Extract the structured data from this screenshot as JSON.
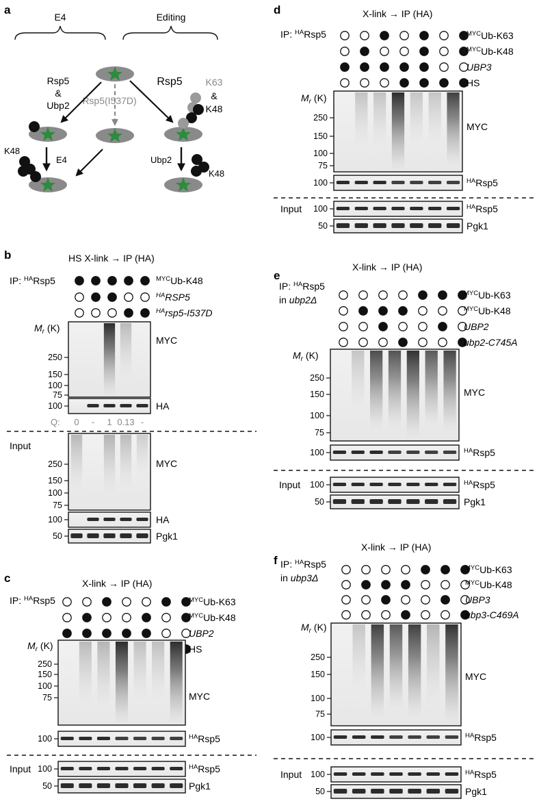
{
  "panel_a": {
    "letter": "a",
    "left_group": "E4",
    "right_group": "Editing",
    "rsp5_ubp2": [
      "Rsp5",
      "&",
      "Ubp2"
    ],
    "mutant": "Rsp5(I537D)",
    "rsp5": "Rsp5",
    "k63_and_k48": [
      "K63",
      "&",
      "K48"
    ],
    "k48_left": "K48",
    "e4": "E4",
    "ubp2": "Ubp2",
    "k48_right": "K48"
  },
  "panel_b": {
    "letter": "b",
    "title": "HS X-link → IP (HA)",
    "ip_label": "IP:",
    "ip_sup": "HA",
    "ip_protein": "Rsp5",
    "rows": [
      {
        "sup": "MYC",
        "label": "Ub-K48",
        "italic": false,
        "dots": [
          1,
          1,
          1,
          1,
          1
        ]
      },
      {
        "sup": "HA",
        "label": "RSP5",
        "italic": true,
        "dots": [
          0,
          1,
          1,
          0,
          0
        ]
      },
      {
        "sup": "HA",
        "label": "rsp5-I537D",
        "italic": true,
        "dots": [
          0,
          0,
          0,
          1,
          1
        ]
      }
    ],
    "mr": "M",
    "mr_sub": "r",
    "mr_unit": " (K)",
    "ip_ticks": [
      "250",
      "150",
      "100",
      "75"
    ],
    "ha_tick": "100",
    "myc": "MYC",
    "ha": "HA",
    "q_label": "Q:",
    "q_values": [
      "0",
      "-",
      "1",
      "0.13",
      "-"
    ],
    "input_label": "Input",
    "input_ticks": [
      "250",
      "150",
      "100",
      "75"
    ],
    "input_ha_tick": "100",
    "pgk_tick": "50",
    "pgk1": "Pgk1"
  },
  "panel_c": {
    "letter": "c",
    "title": "X-link → IP (HA)",
    "ip_label": "IP:",
    "ip_sup": "HA",
    "ip_protein": "Rsp5",
    "rows": [
      {
        "sup": "",
        "label": "Ub-K63",
        "sup2": "MYC",
        "italic": false,
        "dots": [
          0,
          0,
          1,
          0,
          0,
          1,
          1
        ]
      },
      {
        "sup2": "MYC",
        "label": "Ub-K48",
        "italic": false,
        "dots": [
          0,
          1,
          0,
          0,
          1,
          0,
          1
        ]
      },
      {
        "sup2": "",
        "label": "UBP2",
        "italic": true,
        "dots": [
          1,
          1,
          1,
          1,
          1,
          0,
          0
        ]
      },
      {
        "sup2": "",
        "label": "HS",
        "italic": false,
        "dots": [
          0,
          0,
          0,
          1,
          1,
          1,
          1
        ]
      }
    ],
    "mr": "M",
    "mr_sub": "r",
    "mr_unit": " (K)",
    "ticks": [
      "250",
      "150",
      "100",
      "75"
    ],
    "myc": "MYC",
    "rsp5_tick": "100",
    "rsp5_sup": "HA",
    "rsp5": "Rsp5",
    "input_label": "Input",
    "input_rsp5_tick": "100",
    "pgk_tick": "50",
    "pgk1": "Pgk1"
  },
  "panel_d": {
    "letter": "d",
    "title": "X-link → IP (HA)",
    "ip_label": "IP:",
    "ip_sup": "HA",
    "ip_protein": "Rsp5",
    "rows": [
      {
        "sup2": "MYC",
        "label": "Ub-K63",
        "italic": false,
        "dots": [
          0,
          0,
          1,
          0,
          1,
          0,
          1
        ]
      },
      {
        "sup2": "MYC",
        "label": "Ub-K48",
        "italic": false,
        "dots": [
          0,
          1,
          0,
          0,
          1,
          0,
          1
        ]
      },
      {
        "sup2": "",
        "label": "UBP3",
        "italic": true,
        "dots": [
          1,
          1,
          1,
          1,
          1,
          0,
          0
        ]
      },
      {
        "sup2": "",
        "label": "HS",
        "italic": false,
        "dots": [
          0,
          0,
          0,
          1,
          1,
          1,
          1
        ]
      }
    ],
    "mr": "M",
    "mr_sub": "r",
    "mr_unit": " (K)",
    "ticks": [
      "250",
      "150",
      "100",
      "75"
    ],
    "myc": "MYC",
    "rsp5_tick": "100",
    "rsp5_sup": "HA",
    "rsp5": "Rsp5",
    "input_label": "Input",
    "input_rsp5_tick": "100",
    "pgk_tick": "50",
    "pgk1": "Pgk1"
  },
  "panel_e": {
    "letter": "e",
    "title": "X-link → IP (HA)",
    "ip_label": "IP:",
    "ip_sup": "HA",
    "ip_protein": "Rsp5",
    "ip_in": "in",
    "ip_strain": "ubp2Δ",
    "rows": [
      {
        "sup2": "MYC",
        "label": "Ub-K63",
        "italic": false,
        "dots": [
          0,
          0,
          0,
          0,
          1,
          1,
          1
        ]
      },
      {
        "sup2": "MYC",
        "label": "Ub-K48",
        "italic": false,
        "dots": [
          0,
          1,
          1,
          1,
          0,
          0,
          0
        ]
      },
      {
        "sup2": "",
        "label": "UBP2",
        "italic": true,
        "dots": [
          0,
          0,
          1,
          0,
          0,
          1,
          0
        ]
      },
      {
        "sup2": "",
        "label": "ubp2-C745A",
        "italic": true,
        "dots": [
          0,
          0,
          0,
          1,
          0,
          0,
          1
        ]
      }
    ],
    "mr": "M",
    "mr_sub": "r",
    "mr_unit": " (K)",
    "ticks": [
      "250",
      "150",
      "100",
      "75"
    ],
    "myc": "MYC",
    "rsp5_tick": "100",
    "rsp5_sup": "HA",
    "rsp5": "Rsp5",
    "input_label": "Input",
    "input_rsp5_tick": "100",
    "pgk_tick": "50",
    "pgk1": "Pgk1"
  },
  "panel_f": {
    "letter": "f",
    "title": "X-link → IP (HA)",
    "ip_label": "IP:",
    "ip_sup": "HA",
    "ip_protein": "Rsp5",
    "ip_in": "in",
    "ip_strain": "ubp3Δ",
    "rows": [
      {
        "sup2": "MYC",
        "label": "Ub-K63",
        "italic": false,
        "dots": [
          0,
          0,
          0,
          0,
          1,
          1,
          1
        ]
      },
      {
        "sup2": "MYC",
        "label": "Ub-K48",
        "italic": false,
        "dots": [
          0,
          1,
          1,
          1,
          0,
          0,
          0
        ]
      },
      {
        "sup2": "",
        "label": "UBP3",
        "italic": true,
        "dots": [
          0,
          0,
          1,
          0,
          0,
          1,
          0
        ]
      },
      {
        "sup2": "",
        "label": "ubp3-C469A",
        "italic": true,
        "dots": [
          0,
          0,
          0,
          1,
          0,
          0,
          1
        ]
      }
    ],
    "mr": "M",
    "mr_sub": "r",
    "mr_unit": " (K)",
    "ticks": [
      "250",
      "150",
      "100",
      "75"
    ],
    "myc": "MYC",
    "rsp5_tick": "100",
    "rsp5_sup": "HA",
    "rsp5": "Rsp5",
    "input_label": "Input",
    "input_rsp5_tick": "100",
    "pgk_tick": "50",
    "pgk1": "Pgk1"
  },
  "colors": {
    "star": "#2e8b3e",
    "substrate": "#8a8a8a",
    "mutant_text": "#888888",
    "k63_ub": "#9a9a9a",
    "ub": "#111111"
  }
}
